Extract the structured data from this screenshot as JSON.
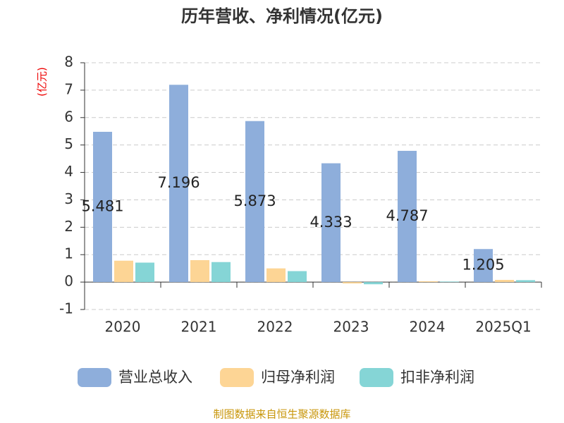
{
  "chart_data": {
    "type": "bar",
    "title": "历年营收、净利情况(亿元)",
    "y_label": "(亿元)",
    "categories": [
      "2020",
      "2021",
      "2022",
      "2023",
      "2024",
      "2025Q1"
    ],
    "series": [
      {
        "name": "营业总收入",
        "color": "#8eaedb",
        "values": [
          5.481,
          7.196,
          5.873,
          4.333,
          4.787,
          1.205
        ],
        "show_labels": true
      },
      {
        "name": "归母净利润",
        "color": "#fdd595",
        "values": [
          0.78,
          0.8,
          0.5,
          -0.05,
          0.03,
          0.08
        ]
      },
      {
        "name": "扣非净利润",
        "color": "#85d5d6",
        "values": [
          0.71,
          0.73,
          0.4,
          -0.08,
          0.02,
          0.07
        ]
      }
    ],
    "ylim": [
      -1,
      8
    ],
    "yticks": [
      -1,
      0,
      1,
      2,
      3,
      4,
      5,
      6,
      7,
      8
    ],
    "grid": true,
    "source": "制图数据来自恒生聚源数据库"
  }
}
